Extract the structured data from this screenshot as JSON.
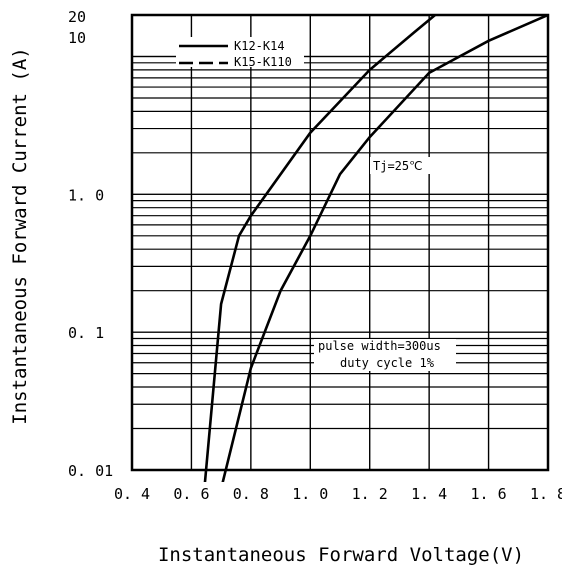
{
  "chart_data": {
    "type": "line",
    "ylabel": "Instantaneous Forward Current (A)",
    "xlabel": "Instantaneous Forward Voltage(V)",
    "x_ticks": [
      "0. 4",
      "0. 6",
      "0. 8",
      "1. 0",
      "1. 2",
      "1. 4",
      "1. 6",
      "1. 8"
    ],
    "y_ticks": [
      {
        "value": 0.01,
        "label": "0. 01"
      },
      {
        "value": 0.1,
        "label": "0. 1"
      },
      {
        "value": 1,
        "label": "1. 0"
      },
      {
        "value": 10,
        "label": "10"
      },
      {
        "value": 20,
        "label": "20"
      }
    ],
    "xlim": [
      0.4,
      1.8
    ],
    "ylim": [
      0.01,
      20
    ],
    "y_scale": "log",
    "grid": true,
    "legend_position": "top-left",
    "legend": [
      {
        "label": "K12-K14",
        "style": "solid"
      },
      {
        "label": "K15-K110",
        "style": "dashed"
      }
    ],
    "annotations": {
      "temperature": "Tj=25℃",
      "pulse": "pulse width=300us",
      "duty": "duty cycle 1%"
    },
    "series": [
      {
        "points": [
          [
            0.64,
            0.006
          ],
          [
            0.7,
            0.16
          ],
          [
            0.76,
            0.5
          ],
          [
            0.8,
            0.7
          ],
          [
            1.0,
            2.8
          ],
          [
            1.2,
            8.0
          ],
          [
            1.35,
            15.0
          ],
          [
            1.42,
            20.0
          ]
        ]
      },
      {
        "points": [
          [
            0.69,
            0.006
          ],
          [
            0.8,
            0.055
          ],
          [
            0.9,
            0.2
          ],
          [
            1.0,
            0.5
          ],
          [
            1.1,
            1.4
          ],
          [
            1.2,
            2.6
          ],
          [
            1.4,
            7.6
          ],
          [
            1.6,
            13.0
          ],
          [
            1.8,
            20.0
          ]
        ]
      }
    ]
  }
}
